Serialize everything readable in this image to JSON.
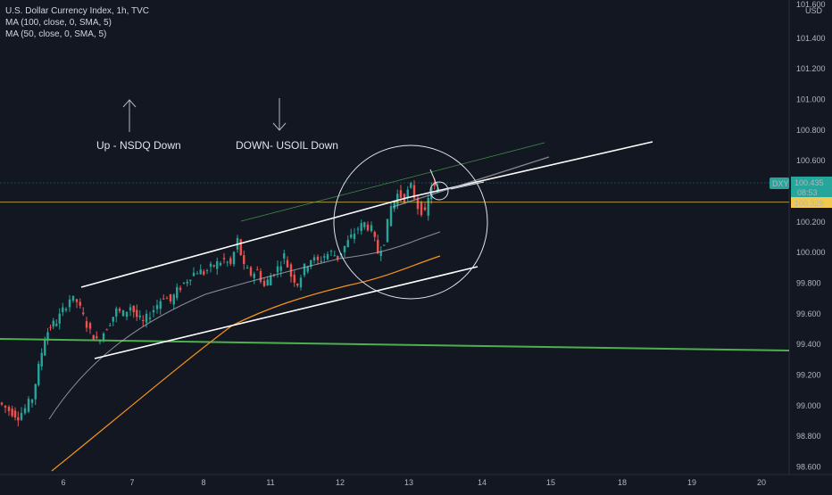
{
  "legend": {
    "title": "U.S. Dollar Currency Index, 1h, TVC",
    "ma100": "MA (100, close, 0, SMA, 5)",
    "ma50": "MA (50, close, 0, SMA, 5)"
  },
  "annotations": {
    "up_text": "Up - NSDQ Down",
    "down_text": "DOWN- USOIL Down"
  },
  "price_axis": {
    "currency": "USD",
    "ticks": [
      "101.400",
      "101.200",
      "101.000",
      "100.800",
      "100.600",
      "100.200",
      "100.000",
      "99.800",
      "99.600",
      "99.400",
      "99.200",
      "99.000",
      "98.800",
      "98.600"
    ],
    "top_partial": "101.600"
  },
  "time_axis": {
    "ticks": [
      "6",
      "7",
      "8",
      "11",
      "12",
      "13",
      "14",
      "15",
      "18",
      "19",
      "20"
    ]
  },
  "badges": {
    "symbol": "DXY",
    "price": "100.435",
    "countdown": "08:53",
    "line_price": "100.329"
  },
  "colors": {
    "background": "#131722",
    "up": "#26a69a",
    "down": "#ef5350",
    "ma100": "#b2b5be",
    "ma50": "#f7931a",
    "support": "#4caf50",
    "yellow_line": "#f2c94c"
  },
  "chart_data": {
    "type": "candlestick",
    "title": "U.S. Dollar Currency Index, 1h, TVC",
    "ylim": [
      98.55,
      101.65
    ],
    "x_ticks": [
      "6",
      "7",
      "8",
      "11",
      "12",
      "13",
      "14",
      "15",
      "18",
      "19",
      "20"
    ],
    "horizontal_levels": [
      100.329,
      99.42
    ],
    "last_price": 100.435,
    "series": [
      {
        "name": "MA (100, close, 0, SMA, 5)"
      },
      {
        "name": "MA (50, close, 0, SMA, 5)"
      }
    ],
    "close_path": [
      [
        0,
        99.02
      ],
      [
        12,
        98.97
      ],
      [
        22,
        98.93
      ],
      [
        30,
        98.98
      ],
      [
        38,
        99.05
      ],
      [
        45,
        99.25
      ],
      [
        52,
        99.45
      ],
      [
        58,
        99.52
      ],
      [
        65,
        99.55
      ],
      [
        72,
        99.62
      ],
      [
        80,
        99.7
      ],
      [
        88,
        99.68
      ],
      [
        95,
        99.58
      ],
      [
        103,
        99.48
      ],
      [
        110,
        99.42
      ],
      [
        118,
        99.48
      ],
      [
        125,
        99.55
      ],
      [
        132,
        99.62
      ],
      [
        140,
        99.6
      ],
      [
        148,
        99.65
      ],
      [
        155,
        99.58
      ],
      [
        162,
        99.54
      ],
      [
        170,
        99.6
      ],
      [
        178,
        99.66
      ],
      [
        185,
        99.72
      ],
      [
        193,
        99.68
      ],
      [
        200,
        99.75
      ],
      [
        208,
        99.8
      ],
      [
        215,
        99.85
      ],
      [
        223,
        99.88
      ],
      [
        230,
        99.87
      ],
      [
        238,
        99.9
      ],
      [
        245,
        99.93
      ],
      [
        253,
        99.95
      ],
      [
        260,
        99.92
      ],
      [
        268,
        100.08
      ],
      [
        275,
        99.9
      ],
      [
        283,
        99.86
      ],
      [
        290,
        99.88
      ],
      [
        298,
        99.78
      ],
      [
        305,
        99.85
      ],
      [
        313,
        99.9
      ],
      [
        320,
        99.98
      ],
      [
        328,
        99.85
      ],
      [
        335,
        99.8
      ],
      [
        343,
        99.9
      ],
      [
        350,
        99.96
      ],
      [
        358,
        99.94
      ],
      [
        365,
        99.98
      ],
      [
        373,
        100.0
      ],
      [
        380,
        99.97
      ],
      [
        388,
        100.04
      ],
      [
        395,
        100.1
      ],
      [
        403,
        100.16
      ],
      [
        410,
        100.19
      ],
      [
        418,
        100.15
      ],
      [
        425,
        100.0
      ],
      [
        432,
        100.08
      ],
      [
        440,
        100.3
      ],
      [
        447,
        100.38
      ],
      [
        455,
        100.36
      ],
      [
        462,
        100.43
      ],
      [
        470,
        100.3
      ],
      [
        478,
        100.25
      ],
      [
        485,
        100.44
      ],
      [
        492,
        100.4
      ]
    ]
  }
}
